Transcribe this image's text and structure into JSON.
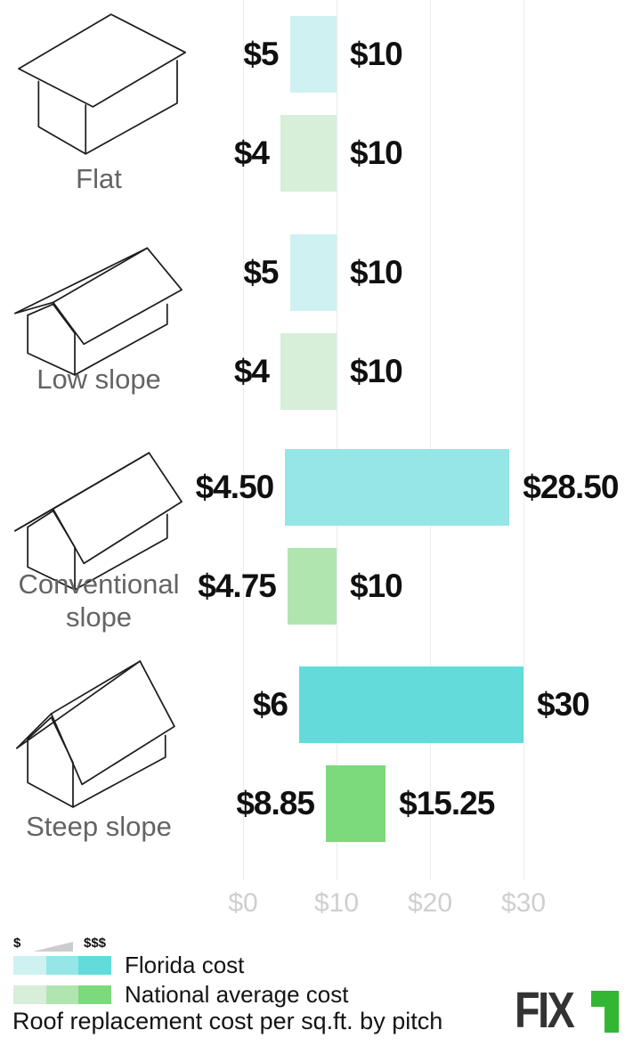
{
  "chart_data": {
    "type": "bar",
    "orientation": "horizontal-range",
    "title": "Roof replacement cost per sq.ft. by pitch",
    "xlabel": "",
    "ylabel": "",
    "x_axis": {
      "ticks": [
        {
          "label": "$0",
          "value": 0
        },
        {
          "label": "$10",
          "value": 10
        },
        {
          "label": "$20",
          "value": 20
        },
        {
          "label": "$30",
          "value": 30
        }
      ],
      "range": [
        0,
        31
      ]
    },
    "series": [
      {
        "name": "Florida cost",
        "colors": [
          "#cff1f1",
          "#95e6e6",
          "#63dbdb"
        ]
      },
      {
        "name": "National average cost",
        "colors": [
          "#d7eed9",
          "#b0e5b0",
          "#7cd97c"
        ]
      }
    ],
    "groups": [
      {
        "pitch": "Flat",
        "shade": 0,
        "florida": {
          "min": 5,
          "max": 10,
          "min_label": "$5",
          "max_label": "$10"
        },
        "national": {
          "min": 4,
          "max": 10,
          "min_label": "$4",
          "max_label": "$10"
        }
      },
      {
        "pitch": "Low slope",
        "shade": 0,
        "florida": {
          "min": 5,
          "max": 10,
          "min_label": "$5",
          "max_label": "$10"
        },
        "national": {
          "min": 4,
          "max": 10,
          "min_label": "$4",
          "max_label": "$10"
        }
      },
      {
        "pitch": "Conventional slope",
        "shade": 1,
        "florida": {
          "min": 4.5,
          "max": 28.5,
          "min_label": "$4.50",
          "max_label": "$28.50"
        },
        "national": {
          "min": 4.75,
          "max": 10,
          "min_label": "$4.75",
          "max_label": "$10"
        }
      },
      {
        "pitch": "Steep slope",
        "shade": 2,
        "florida": {
          "min": 6,
          "max": 30,
          "min_label": "$6",
          "max_label": "$30"
        },
        "national": {
          "min": 8.85,
          "max": 15.25,
          "min_label": "$8.85",
          "max_label": "$15.25"
        }
      }
    ],
    "legend": {
      "scale_min": "$",
      "scale_max": "$$$"
    }
  },
  "logo": {
    "text": "FIX",
    "accent_color": "#33b733",
    "text_color": "#333333"
  }
}
